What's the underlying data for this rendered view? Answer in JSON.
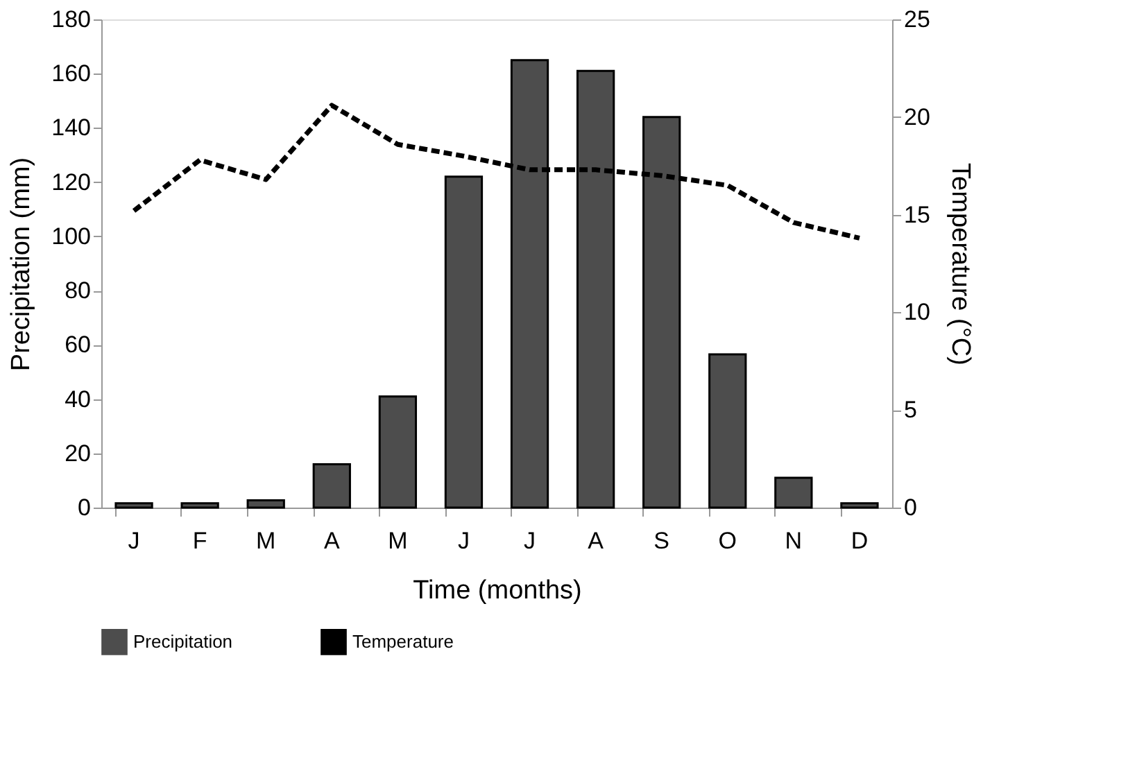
{
  "chart_data": {
    "type": "bar",
    "xlabel": "Time (months)",
    "ylabel": "Precipitation (mm)",
    "y2label": "Temperature (°C)",
    "categories": [
      "J",
      "F",
      "M",
      "A",
      "M ",
      "J ",
      "J  ",
      "A ",
      "S",
      "O",
      "N",
      "D"
    ],
    "series": [
      {
        "name": "Precipitation",
        "color": "#4d4d4d",
        "values": [
          1.6,
          1.6,
          2.7,
          16,
          41,
          122,
          165,
          161,
          144,
          56.5,
          11,
          1.6
        ]
      },
      {
        "name": "Temperature",
        "type": "line",
        "axis": "y2",
        "color": "#000000",
        "line_style": "dashed",
        "values": [
          15.2,
          17.8,
          16.8,
          20.6,
          18.6,
          18.0,
          17.3,
          17.3,
          17.0,
          16.5,
          14.6,
          13.8
        ]
      }
    ],
    "ylim": [
      0,
      180
    ],
    "yticks": [
      0,
      20,
      40,
      60,
      80,
      100,
      120,
      140,
      160,
      180
    ],
    "y2lim": [
      0,
      25
    ],
    "y2ticks": [
      0,
      5,
      10,
      15,
      20,
      25
    ],
    "grid": false,
    "legend": "bottom"
  }
}
